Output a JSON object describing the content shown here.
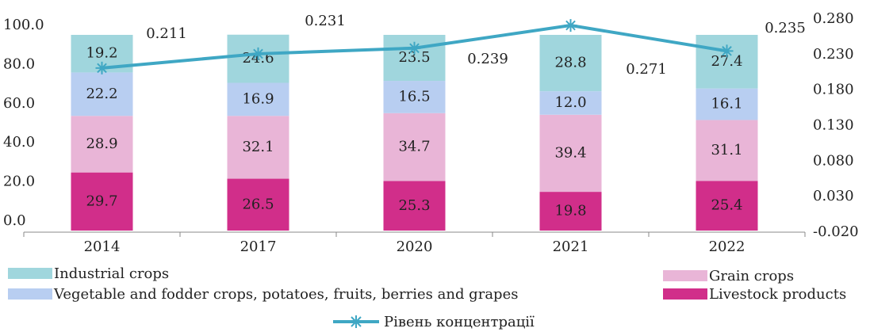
{
  "chart_data": {
    "type": "bar",
    "stacked": true,
    "categories": [
      "2014",
      "2017",
      "2020",
      "2021",
      "2022"
    ],
    "series": [
      {
        "name": "Livestock products",
        "color": "#d12e8a",
        "values": [
          29.7,
          26.5,
          25.3,
          19.8,
          25.4
        ],
        "value_labels": [
          "29.7",
          "26.5",
          "25.3",
          "19.8",
          "25.4"
        ]
      },
      {
        "name": "Grain crops",
        "color": "#e9b5d7",
        "values": [
          28.9,
          32.1,
          34.7,
          39.4,
          31.1
        ],
        "value_labels": [
          "28.9",
          "32.1",
          "34.7",
          "39.4",
          "31.1"
        ]
      },
      {
        "name": "Vegetable and fodder crops, potatoes, fruits, berries and grapes",
        "color": "#b8cef1",
        "values": [
          22.2,
          16.9,
          16.5,
          12.0,
          16.1
        ],
        "value_labels": [
          "22.2",
          "16.9",
          "16.5",
          "12.0",
          "16.1"
        ]
      },
      {
        "name": "Industrial crops",
        "color": "#a0d6dd",
        "values": [
          19.2,
          24.6,
          23.5,
          28.8,
          27.4
        ],
        "value_labels": [
          "19.2",
          "24.6",
          "23.5",
          "28.8",
          "27.4"
        ]
      },
      {
        "name": "Рівень концентрації",
        "color": "#3fa7c4",
        "type": "line",
        "axis": "y2",
        "values": [
          0.211,
          0.231,
          0.239,
          0.271,
          0.235
        ]
      }
    ],
    "ylim": [
      0,
      100
    ],
    "yticks": [
      {
        "value": 0,
        "label": "0.0"
      },
      {
        "value": 20,
        "label": "20.0"
      },
      {
        "value": 40,
        "label": "40.0"
      },
      {
        "value": 60,
        "label": "60.0"
      },
      {
        "value": 80,
        "label": "80.0"
      },
      {
        "value": 100,
        "label": "100.0"
      }
    ],
    "y2lim": [
      -0.02,
      0.28
    ],
    "y2ticks": [
      {
        "value": -0.02,
        "label": "-0.020"
      },
      {
        "value": 0.03,
        "label": "0.030"
      },
      {
        "value": 0.08,
        "label": "0.080"
      },
      {
        "value": 0.13,
        "label": "0.130"
      },
      {
        "value": 0.18,
        "label": "0.180"
      },
      {
        "value": 0.23,
        "label": "0.230"
      },
      {
        "value": 0.28,
        "label": "0.280"
      }
    ]
  }
}
